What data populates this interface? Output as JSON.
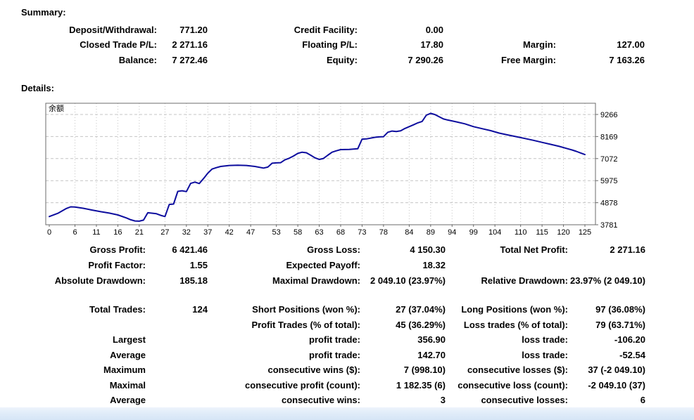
{
  "summary": {
    "title": "Summary:",
    "rows": [
      [
        "Deposit/Withdrawal:",
        "771.20",
        "Credit Facility:",
        "0.00",
        "",
        ""
      ],
      [
        "Closed Trade P/L:",
        "2 271.16",
        "Floating P/L:",
        "17.80",
        "Margin:",
        "127.00"
      ],
      [
        "Balance:",
        "7 272.46",
        "Equity:",
        "7 290.26",
        "Free Margin:",
        "7 163.26"
      ]
    ]
  },
  "details": {
    "title": "Details:",
    "stats1": [
      [
        "Gross Profit:",
        "6 421.46",
        "Gross Loss:",
        "4 150.30",
        "Total Net Profit:",
        "2 271.16"
      ],
      [
        "Profit Factor:",
        "1.55",
        "Expected Payoff:",
        "18.32",
        "",
        ""
      ],
      [
        "Absolute Drawdown:",
        "185.18",
        "Maximal Drawdown:",
        "2 049.10 (23.97%)",
        "Relative Drawdown:",
        "23.97% (2 049.10)"
      ]
    ],
    "stats2": [
      [
        "Total Trades:",
        "124",
        "Short Positions (won %):",
        "27 (37.04%)",
        "Long Positions (won %):",
        "97 (36.08%)"
      ],
      [
        "",
        "",
        "Profit Trades (% of total):",
        "45 (36.29%)",
        "Loss trades (% of total):",
        "79 (63.71%)"
      ],
      [
        "Largest",
        "",
        "profit trade:",
        "356.90",
        "loss trade:",
        "-106.20"
      ],
      [
        "Average",
        "",
        "profit trade:",
        "142.70",
        "loss trade:",
        "-52.54"
      ],
      [
        "Maximum",
        "",
        "consecutive wins ($):",
        "7 (998.10)",
        "consecutive losses ($):",
        "37 (-2 049.10)"
      ],
      [
        "Maximal",
        "",
        "consecutive profit (count):",
        "1 182.35 (6)",
        "consecutive loss (count):",
        "-2 049.10 (37)"
      ],
      [
        "Average",
        "",
        "consecutive wins:",
        "3",
        "consecutive losses:",
        "6"
      ]
    ]
  },
  "chart_data": {
    "type": "line",
    "title": "余额",
    "x_ticks": [
      0,
      6,
      11,
      16,
      21,
      27,
      32,
      37,
      42,
      47,
      53,
      58,
      63,
      68,
      73,
      78,
      84,
      89,
      94,
      99,
      104,
      110,
      115,
      120,
      125
    ],
    "y_ticks": [
      3781,
      4878,
      5975,
      7072,
      8169,
      9266
    ],
    "xlim": [
      0,
      125
    ],
    "ylim": [
      3781,
      9824
    ],
    "grid": true,
    "legend_position": "none",
    "series": [
      {
        "name": "余额",
        "x": [
          0,
          2,
          3,
          4,
          5,
          6,
          8,
          10,
          12,
          14,
          16,
          18,
          19,
          20,
          21,
          22,
          23,
          25,
          26,
          27,
          28,
          29,
          30,
          31,
          32,
          33,
          34,
          35,
          36,
          37,
          38,
          39,
          40,
          42,
          44,
          46,
          48,
          50,
          51,
          52,
          53,
          54,
          55,
          56,
          57,
          58,
          59,
          60,
          61,
          62,
          63,
          64,
          65,
          66,
          67,
          68,
          70,
          72,
          73,
          74,
          76,
          77,
          78,
          79,
          80,
          81,
          82,
          83,
          84,
          85,
          86,
          87,
          88,
          89,
          90,
          91,
          92,
          93,
          95,
          97,
          99,
          101,
          103,
          105,
          107,
          109,
          111,
          113,
          115,
          117,
          119,
          121,
          122,
          123,
          124,
          125
        ],
        "values": [
          4190,
          4350,
          4470,
          4590,
          4670,
          4660,
          4600,
          4510,
          4430,
          4360,
          4270,
          4120,
          4030,
          3970,
          3960,
          4010,
          4380,
          4330,
          4250,
          4190,
          4790,
          4810,
          5440,
          5470,
          5430,
          5840,
          5900,
          5830,
          6080,
          6350,
          6550,
          6620,
          6680,
          6730,
          6740,
          6730,
          6680,
          6600,
          6650,
          6840,
          6860,
          6870,
          7010,
          7090,
          7200,
          7330,
          7390,
          7360,
          7240,
          7110,
          7030,
          7080,
          7240,
          7390,
          7460,
          7520,
          7530,
          7560,
          8040,
          8050,
          8130,
          8150,
          8160,
          8380,
          8440,
          8420,
          8450,
          8570,
          8660,
          8750,
          8850,
          8920,
          9230,
          9320,
          9260,
          9150,
          9040,
          8990,
          8900,
          8800,
          8660,
          8560,
          8460,
          8340,
          8250,
          8160,
          8070,
          7980,
          7880,
          7780,
          7680,
          7560,
          7500,
          7430,
          7350,
          7272
        ]
      }
    ]
  },
  "colors": {
    "balance_line": "#0d0d9e",
    "grid_line": "#c4c4c4",
    "chart_border": "#6b6b6b",
    "text": "#000000",
    "footer_bar_top": "#eef4fc",
    "footer_bar_bottom": "#d5e5f6"
  }
}
